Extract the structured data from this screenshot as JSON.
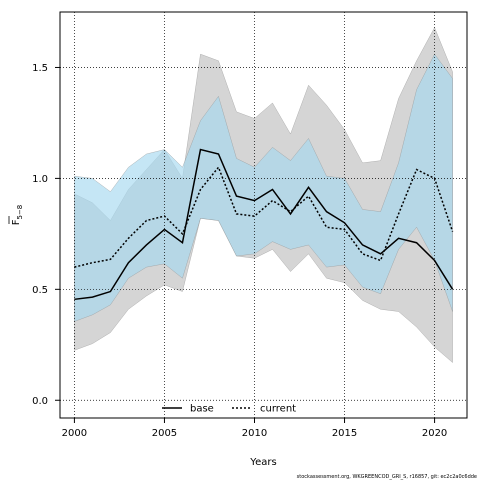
{
  "chart_data": {
    "type": "line",
    "xlabel": "Years",
    "ylabel_main": "F",
    "ylabel_sub": "5−8",
    "xlim": [
      1999.2,
      2021.8
    ],
    "ylim": [
      -0.08,
      1.75
    ],
    "xticks": [
      2000,
      2005,
      2010,
      2015,
      2020
    ],
    "yticks": [
      0.0,
      0.5,
      1.0,
      1.5
    ],
    "ytick_labels": [
      "0.0",
      "0.5",
      "1.0",
      "1.5"
    ],
    "grid": true,
    "legend_position": "bottom-center",
    "x": [
      2000,
      2001,
      2002,
      2003,
      2004,
      2005,
      2006,
      2007,
      2008,
      2009,
      2010,
      2011,
      2012,
      2013,
      2014,
      2015,
      2016,
      2017,
      2018,
      2019,
      2020,
      2021
    ],
    "series": [
      {
        "name": "base",
        "color": "#000000",
        "line_style": "solid",
        "values": [
          0.455,
          0.465,
          0.49,
          0.62,
          0.7,
          0.77,
          0.71,
          1.13,
          1.11,
          0.92,
          0.9,
          0.95,
          0.84,
          0.96,
          0.85,
          0.8,
          0.7,
          0.66,
          0.73,
          0.71,
          0.63,
          0.5
        ],
        "band_lower": [
          0.225,
          0.255,
          0.305,
          0.41,
          0.47,
          0.52,
          0.49,
          0.82,
          0.81,
          0.65,
          0.64,
          0.68,
          0.58,
          0.66,
          0.55,
          0.53,
          0.45,
          0.41,
          0.4,
          0.33,
          0.24,
          0.17
        ],
        "band_upper": [
          0.93,
          0.89,
          0.81,
          0.95,
          1.04,
          1.13,
          1.0,
          1.56,
          1.53,
          1.3,
          1.27,
          1.34,
          1.2,
          1.42,
          1.33,
          1.22,
          1.07,
          1.08,
          1.36,
          1.53,
          1.68,
          1.48
        ],
        "band_color": "#bebebe"
      },
      {
        "name": "current",
        "color": "#000000",
        "line_style": "dotted",
        "values": [
          0.6,
          0.62,
          0.635,
          0.73,
          0.81,
          0.83,
          0.75,
          0.95,
          1.05,
          0.84,
          0.83,
          0.9,
          0.85,
          0.92,
          0.78,
          0.77,
          0.66,
          0.63,
          0.84,
          1.04,
          1.0,
          0.76
        ],
        "band_lower": [
          0.355,
          0.385,
          0.43,
          0.55,
          0.6,
          0.615,
          0.55,
          0.82,
          0.81,
          0.65,
          0.66,
          0.715,
          0.68,
          0.7,
          0.6,
          0.61,
          0.51,
          0.48,
          0.68,
          0.78,
          0.63,
          0.4
        ],
        "band_upper": [
          1.01,
          1.0,
          0.94,
          1.05,
          1.11,
          1.13,
          1.05,
          1.26,
          1.37,
          1.09,
          1.05,
          1.14,
          1.08,
          1.18,
          1.01,
          1.0,
          0.86,
          0.85,
          1.07,
          1.4,
          1.56,
          1.45
        ],
        "band_color": "#a6d8f0"
      }
    ]
  },
  "footer": "stockassessment.org, WKGREENCOD_GRI_S, r16857, git: ec2c2a0c6dde"
}
